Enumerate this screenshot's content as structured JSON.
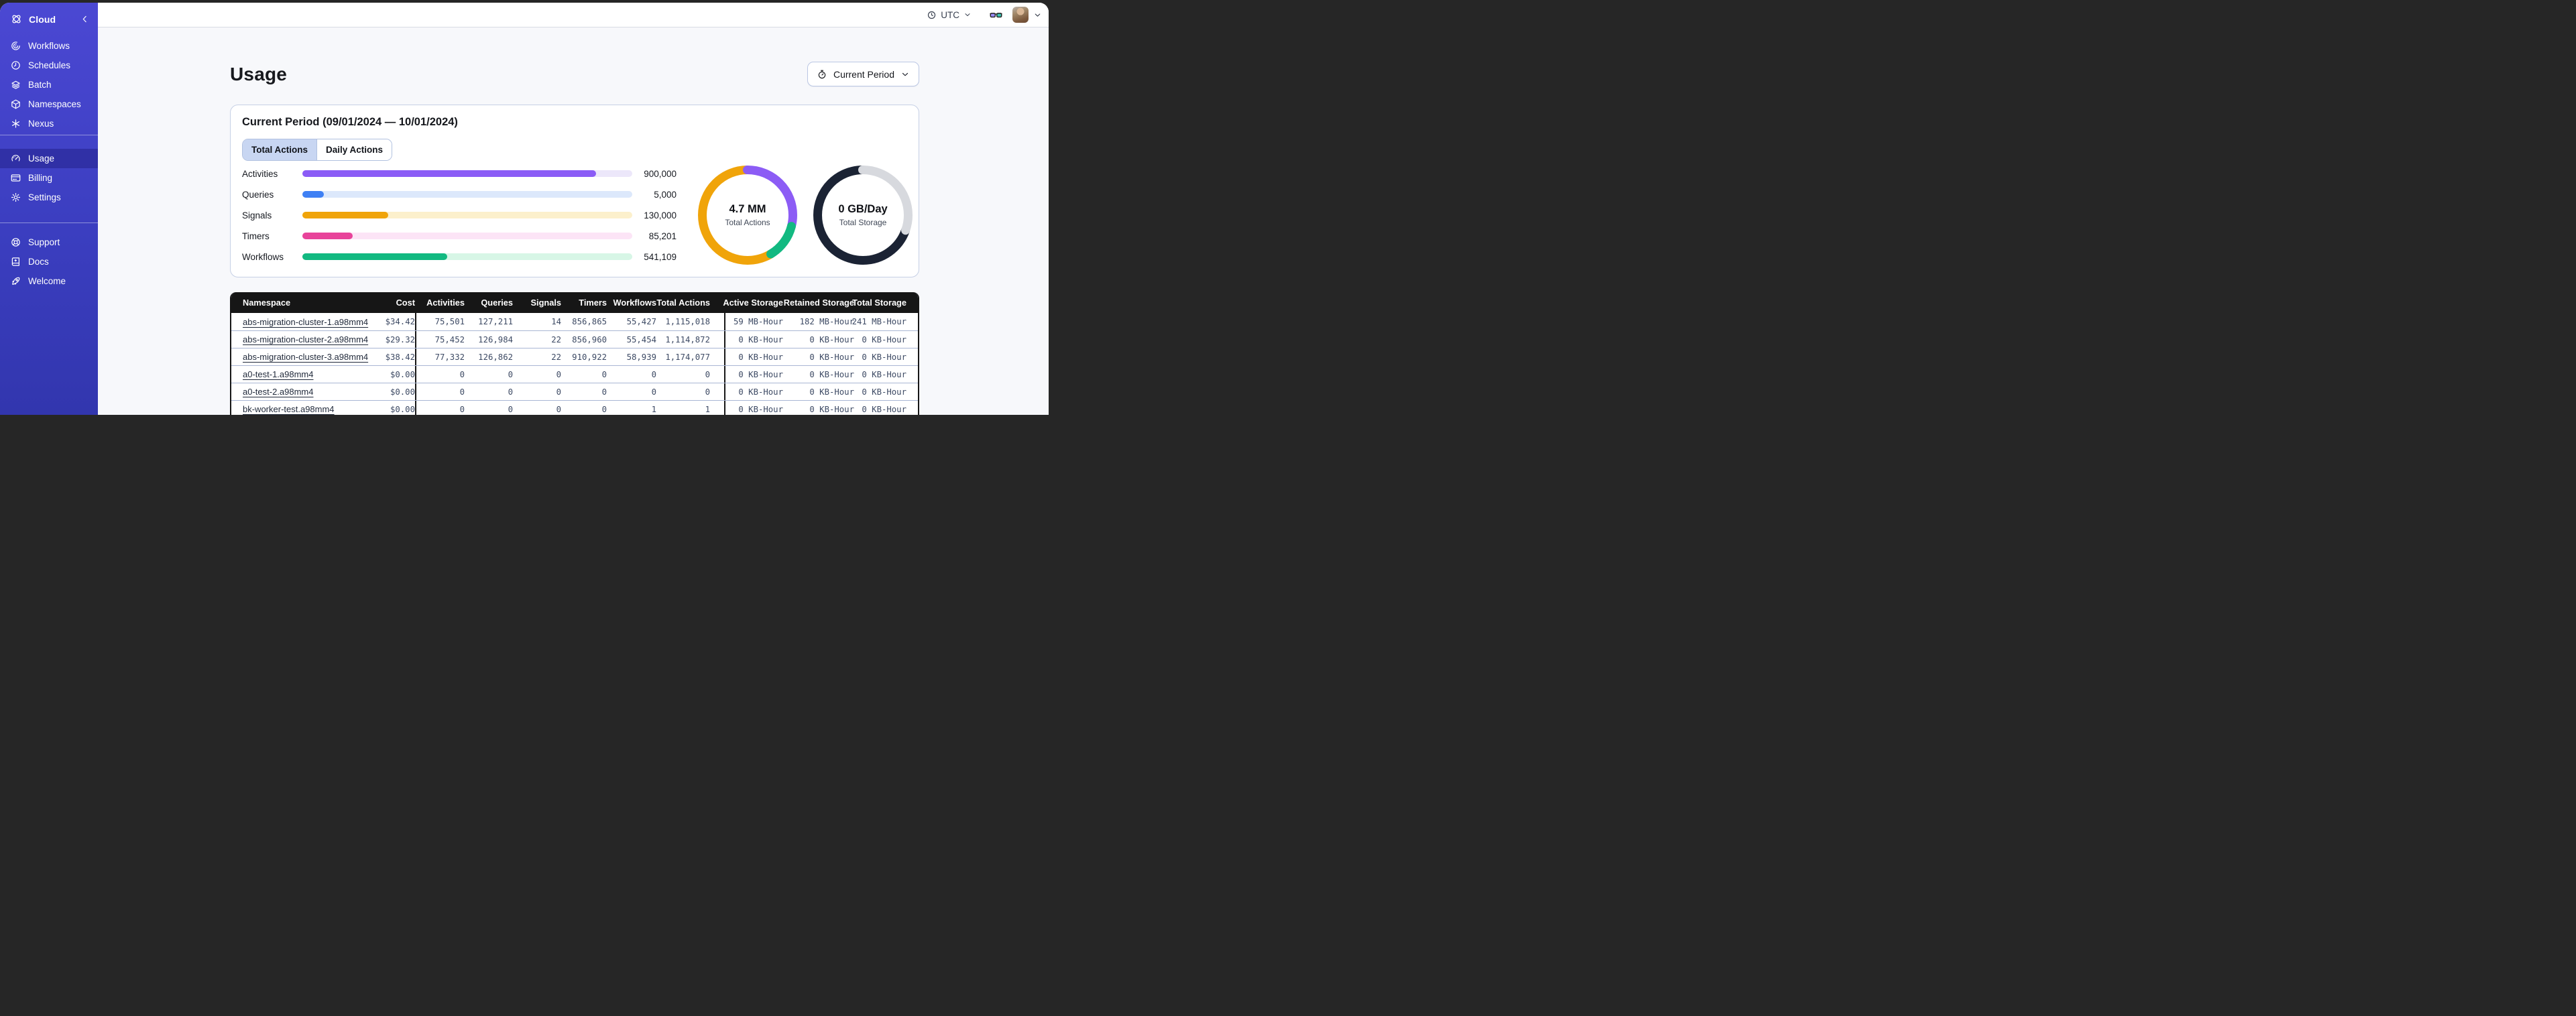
{
  "topbar": {
    "timezone": "UTC"
  },
  "sidebar": {
    "brand": {
      "label": "Cloud"
    },
    "sections": [
      [
        {
          "id": "workflows",
          "label": "Workflows",
          "icon": "workflows",
          "active": false
        },
        {
          "id": "schedules",
          "label": "Schedules",
          "icon": "schedules",
          "active": false
        },
        {
          "id": "batch",
          "label": "Batch",
          "icon": "batch",
          "active": false
        },
        {
          "id": "namespaces",
          "label": "Namespaces",
          "icon": "namespaces",
          "active": false
        },
        {
          "id": "nexus",
          "label": "Nexus",
          "icon": "nexus",
          "active": false
        }
      ],
      [
        {
          "id": "usage",
          "label": "Usage",
          "icon": "usage",
          "active": true
        },
        {
          "id": "billing",
          "label": "Billing",
          "icon": "billing",
          "active": false
        },
        {
          "id": "settings",
          "label": "Settings",
          "icon": "settings",
          "active": false
        }
      ],
      [
        {
          "id": "support",
          "label": "Support",
          "icon": "support",
          "active": false
        },
        {
          "id": "docs",
          "label": "Docs",
          "icon": "docs",
          "active": false
        },
        {
          "id": "welcome",
          "label": "Welcome",
          "icon": "welcome",
          "active": false
        }
      ]
    ]
  },
  "page": {
    "title": "Usage",
    "period_button": "Current Period"
  },
  "panel": {
    "title": "Current Period (09/01/2024 — 10/01/2024)",
    "tabs": [
      {
        "label": "Total Actions",
        "active": true
      },
      {
        "label": "Daily Actions",
        "active": false
      }
    ]
  },
  "chart_data": [
    {
      "type": "bar",
      "orientation": "horizontal",
      "categories": [
        "Activities",
        "Queries",
        "Signals",
        "Timers",
        "Workflows"
      ],
      "values": [
        900000,
        5000,
        130000,
        85201,
        541109
      ],
      "value_labels": [
        "900,000",
        "5,000",
        "130,000",
        "85,201",
        "541,109"
      ],
      "fill_pct": [
        89,
        6.6,
        26,
        15.2,
        44
      ],
      "colors": [
        "#8B5CF6",
        "#3F80F4",
        "#F0A40A",
        "#E8439A",
        "#12B981"
      ],
      "track_colors": [
        "#ECE7FA",
        "#DCE8FB",
        "#FCF0CC",
        "#FCE4F6",
        "#D7F6E6"
      ],
      "grid": false,
      "legend": false
    },
    {
      "type": "pie",
      "title": "Total Actions",
      "center_value": "4.7 MM",
      "segments": [
        {
          "name": "activities",
          "color": "#8C5CF5",
          "pct": 29
        },
        {
          "name": "workflows",
          "color": "#12B981",
          "pct": 12.5
        },
        {
          "name": "signals",
          "color": "#F0A40A",
          "pct": 58.5
        }
      ],
      "legend": false
    },
    {
      "type": "pie",
      "title": "Total Storage",
      "center_value": "0 GB/Day",
      "segments": [
        {
          "name": "retained",
          "color": "#D7D9DE",
          "pct": 30.5
        },
        {
          "name": "active",
          "color": "#1B2334",
          "pct": 69.5
        }
      ],
      "legend": false
    }
  ],
  "table": {
    "columns": [
      "Namespace",
      "Cost",
      "Activities",
      "Queries",
      "Signals",
      "Timers",
      "Workflows",
      "Total Actions",
      "Active Storage",
      "Retained Storage",
      "Total Storage"
    ],
    "rows": [
      {
        "namespace": "abs-migration-cluster-1.a98mm4",
        "cost": "$34.42",
        "activities": "75,501",
        "queries": "127,211",
        "signals": "14",
        "timers": "856,865",
        "workflows": "55,427",
        "total_actions": "1,115,018",
        "active_storage": "59 MB-Hour",
        "retained_storage": "182 MB-Hour",
        "total_storage": "241 MB-Hour"
      },
      {
        "namespace": "abs-migration-cluster-2.a98mm4",
        "cost": "$29.32",
        "activities": "75,452",
        "queries": "126,984",
        "signals": "22",
        "timers": "856,960",
        "workflows": "55,454",
        "total_actions": "1,114,872",
        "active_storage": "0 KB-Hour",
        "retained_storage": "0 KB-Hour",
        "total_storage": "0 KB-Hour"
      },
      {
        "namespace": "abs-migration-cluster-3.a98mm4",
        "cost": "$38.42",
        "activities": "77,332",
        "queries": "126,862",
        "signals": "22",
        "timers": "910,922",
        "workflows": "58,939",
        "total_actions": "1,174,077",
        "active_storage": "0 KB-Hour",
        "retained_storage": "0 KB-Hour",
        "total_storage": "0 KB-Hour"
      },
      {
        "namespace": "a0-test-1.a98mm4",
        "cost": "$0.00",
        "activities": "0",
        "queries": "0",
        "signals": "0",
        "timers": "0",
        "workflows": "0",
        "total_actions": "0",
        "active_storage": "0 KB-Hour",
        "retained_storage": "0 KB-Hour",
        "total_storage": "0 KB-Hour"
      },
      {
        "namespace": "a0-test-2.a98mm4",
        "cost": "$0.00",
        "activities": "0",
        "queries": "0",
        "signals": "0",
        "timers": "0",
        "workflows": "0",
        "total_actions": "0",
        "active_storage": "0 KB-Hour",
        "retained_storage": "0 KB-Hour",
        "total_storage": "0 KB-Hour"
      },
      {
        "namespace": "bk-worker-test.a98mm4",
        "cost": "$0.00",
        "activities": "0",
        "queries": "0",
        "signals": "0",
        "timers": "0",
        "workflows": "1",
        "total_actions": "1",
        "active_storage": "0 KB-Hour",
        "retained_storage": "0 KB-Hour",
        "total_storage": "0 KB-Hour"
      }
    ]
  }
}
